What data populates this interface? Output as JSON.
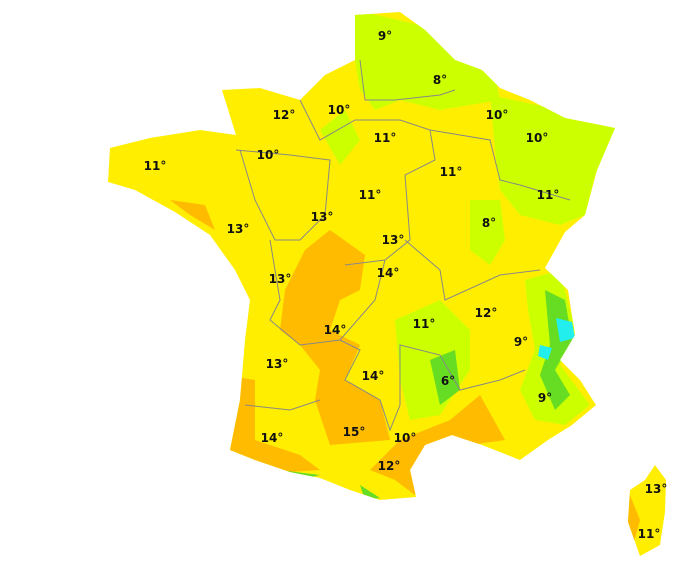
{
  "map": {
    "colors": {
      "background": "#ffffff",
      "base_yellow": "#ffee00",
      "warm_orange": "#ffbb00",
      "mid_yellow": "#f2ea00",
      "cool_green": "#ccff00",
      "cold_green": "#66dd22",
      "very_cold_cyan": "#22eeee",
      "borders": "#888888"
    },
    "temperature_labels": [
      "9°",
      "8°",
      "12°",
      "10°",
      "11°",
      "10°",
      "10°",
      "10°",
      "11°",
      "11°",
      "11°",
      "11°",
      "13°",
      "13°",
      "8°",
      "13°",
      "14°",
      "13°",
      "12°",
      "14°",
      "11°",
      "9°",
      "13°",
      "14°",
      "6°",
      "9°",
      "14°",
      "15°",
      "10°",
      "12°",
      "13°",
      "11°"
    ]
  }
}
